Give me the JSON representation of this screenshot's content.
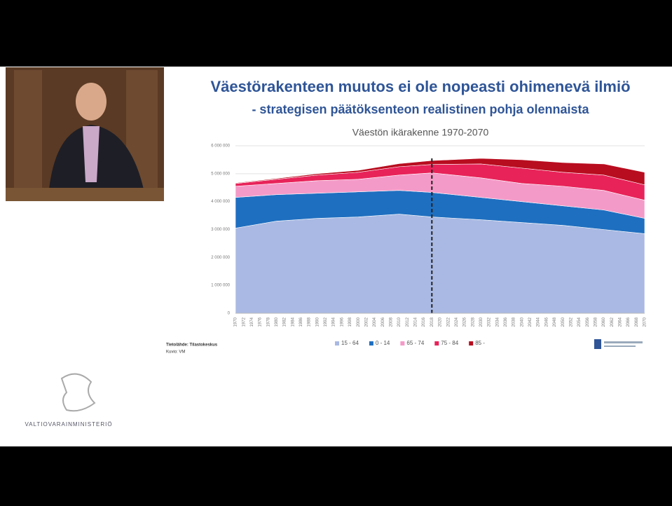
{
  "slide": {
    "title": "Väestörakenteen muutos ei ole nopeasti ohimenevä ilmiö",
    "subtitle": "- strategisen päätöksenteon realistinen pohja olennaista"
  },
  "source": [
    "Tietolähde: Tilastokeskus",
    "Kuvio: VM"
  ],
  "logo": "VALTIOVARAINMINISTERIÖ",
  "chart_data": {
    "type": "stacked_area",
    "title": "Väestön ikärakenne 1970-2070",
    "x": [
      1970,
      1980,
      1990,
      2000,
      2010,
      2018,
      2030,
      2040,
      2050,
      2060,
      2070
    ],
    "series": [
      {
        "name": "15 - 64",
        "color": "#a9b9e3",
        "values": [
          3050000,
          3300000,
          3400000,
          3450000,
          3550000,
          3450000,
          3350000,
          3250000,
          3150000,
          3000000,
          2850000
        ]
      },
      {
        "name": "0 - 14",
        "color": "#1f6fc0",
        "values": [
          1100000,
          950000,
          900000,
          900000,
          850000,
          880000,
          800000,
          750000,
          700000,
          700000,
          550000
        ]
      },
      {
        "name": "65 - 74",
        "color": "#f49ac8",
        "values": [
          400000,
          400000,
          450000,
          450000,
          550000,
          700000,
          700000,
          650000,
          700000,
          700000,
          650000
        ]
      },
      {
        "name": "75 - 84",
        "color": "#e8235a",
        "values": [
          100000,
          150000,
          200000,
          250000,
          300000,
          300000,
          500000,
          550000,
          500000,
          550000,
          550000
        ]
      },
      {
        "name": "85 -",
        "color": "#b80d1f",
        "values": [
          20000,
          30000,
          50000,
          70000,
          110000,
          140000,
          200000,
          300000,
          350000,
          400000,
          450000
        ]
      }
    ],
    "vline": 2018,
    "xlim": [
      1970,
      2070
    ],
    "xticks": [
      1970,
      1972,
      1974,
      1976,
      1978,
      1980,
      1982,
      1984,
      1986,
      1988,
      1990,
      1992,
      1994,
      1996,
      1998,
      2000,
      2002,
      2004,
      2006,
      2008,
      2010,
      2012,
      2014,
      2016,
      2018,
      2020,
      2022,
      2024,
      2026,
      2028,
      2030,
      2032,
      2034,
      2036,
      2038,
      2040,
      2042,
      2044,
      2046,
      2048,
      2050,
      2052,
      2054,
      2056,
      2058,
      2060,
      2062,
      2064,
      2066,
      2068,
      2070
    ],
    "ylim": [
      0,
      6000000
    ],
    "yticks": [
      0,
      {
        "value": 1000000,
        "label": "1 000 000"
      },
      {
        "value": 2000000,
        "label": "2 000 000"
      },
      {
        "value": 3000000,
        "label": "3 000 000"
      },
      {
        "value": 4000000,
        "label": "4 000 000"
      },
      {
        "value": 5000000,
        "label": "5 000 000"
      },
      {
        "value": 6000000,
        "label": "6 000 000"
      }
    ],
    "grid": true,
    "legend": "bottom"
  }
}
